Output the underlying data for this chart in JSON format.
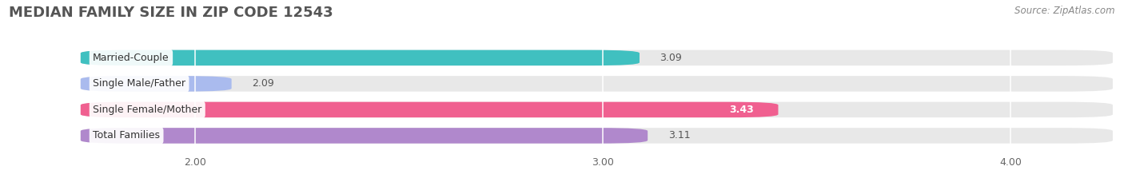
{
  "title": "MEDIAN FAMILY SIZE IN ZIP CODE 12543",
  "source": "Source: ZipAtlas.com",
  "categories": [
    "Married-Couple",
    "Single Male/Father",
    "Single Female/Mother",
    "Total Families"
  ],
  "values": [
    3.09,
    2.09,
    3.43,
    3.11
  ],
  "bar_colors": [
    "#40c0c0",
    "#aabbee",
    "#f06090",
    "#b088cc"
  ],
  "xlim": [
    1.55,
    4.25
  ],
  "xstart": 1.72,
  "xticks": [
    2.0,
    3.0,
    4.0
  ],
  "xtick_labels": [
    "2.00",
    "3.00",
    "4.00"
  ],
  "background_color": "#ffffff",
  "bar_bg_color": "#e8e8e8",
  "title_fontsize": 13,
  "label_fontsize": 9,
  "value_fontsize": 9,
  "source_fontsize": 8.5,
  "bar_height": 0.6,
  "bar_gap": 0.4,
  "value_inside": [
    false,
    false,
    true,
    false
  ],
  "value_colors_inside": [
    "#555555",
    "#555555",
    "#ffffff",
    "#555555"
  ]
}
